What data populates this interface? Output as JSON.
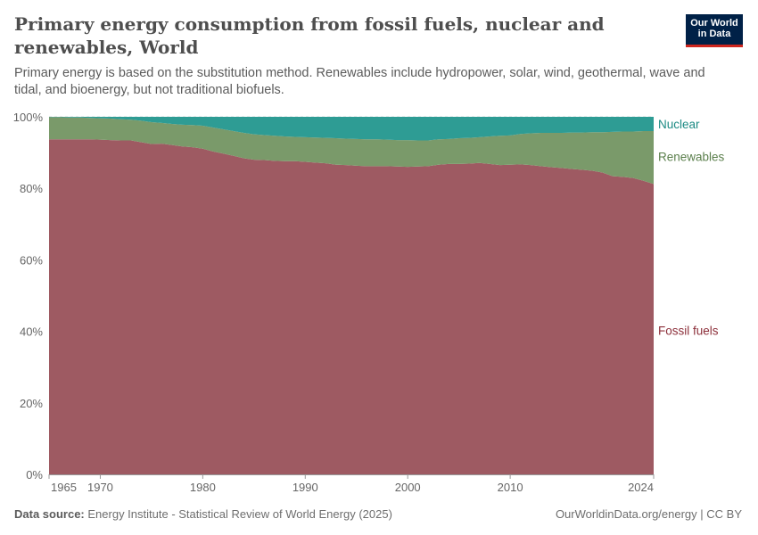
{
  "header": {
    "title": "Primary energy consumption from fossil fuels, nuclear and renewables, World",
    "subtitle": "Primary energy is based on the substitution method. Renewables include hydropower, solar, wind, geothermal, wave and tidal, and bioenergy, but not traditional biofuels.",
    "logo_line1": "Our World",
    "logo_line2": "in Data"
  },
  "footer": {
    "source_label": "Data source:",
    "source_text": "Energy Institute - Statistical Review of World Energy (2025)",
    "credit": "OurWorldinData.org/energy | CC BY"
  },
  "chart_data": {
    "type": "area",
    "stacked": true,
    "relative": true,
    "title": "Primary energy consumption from fossil fuels, nuclear and renewables, World",
    "xlabel": "",
    "ylabel": "",
    "xlim": [
      1965,
      2024
    ],
    "ylim": [
      0,
      100
    ],
    "x_ticks": [
      "1965",
      "1970",
      "1980",
      "1990",
      "2000",
      "2010",
      "2024"
    ],
    "x_tick_values": [
      1965,
      1970,
      1980,
      1990,
      2000,
      2010,
      2024
    ],
    "y_ticks": [
      "0%",
      "20%",
      "40%",
      "60%",
      "80%",
      "100%"
    ],
    "y_tick_values": [
      0,
      20,
      40,
      60,
      80,
      100
    ],
    "grid": "horizontal dashed",
    "legend": "right (inline labels)",
    "x": [
      1965,
      1966,
      1967,
      1968,
      1969,
      1970,
      1971,
      1972,
      1973,
      1974,
      1975,
      1976,
      1977,
      1978,
      1979,
      1980,
      1981,
      1982,
      1983,
      1984,
      1985,
      1986,
      1987,
      1988,
      1989,
      1990,
      1991,
      1992,
      1993,
      1994,
      1995,
      1996,
      1997,
      1998,
      1999,
      2000,
      2001,
      2002,
      2003,
      2004,
      2005,
      2006,
      2007,
      2008,
      2009,
      2010,
      2011,
      2012,
      2013,
      2014,
      2015,
      2016,
      2017,
      2018,
      2019,
      2020,
      2021,
      2022,
      2023,
      2024
    ],
    "series": [
      {
        "name": "Fossil fuels",
        "color": "#9e5a62",
        "label_color": "#8c2f3a",
        "values": [
          93.7,
          93.7,
          93.7,
          93.7,
          93.7,
          93.6,
          93.5,
          93.4,
          93.4,
          92.9,
          92.4,
          92.5,
          92.1,
          91.7,
          91.5,
          91.1,
          90.3,
          89.7,
          89.1,
          88.4,
          88.0,
          87.9,
          87.7,
          87.6,
          87.6,
          87.4,
          87.2,
          87.0,
          86.6,
          86.5,
          86.3,
          86.2,
          86.2,
          86.2,
          86.1,
          86.0,
          86.1,
          86.2,
          86.6,
          86.8,
          86.8,
          86.9,
          87.1,
          86.8,
          86.5,
          86.6,
          86.7,
          86.5,
          86.2,
          85.9,
          85.7,
          85.4,
          85.2,
          84.9,
          84.4,
          83.4,
          83.2,
          82.9,
          82.1,
          81.2
        ]
      },
      {
        "name": "Renewables",
        "color": "#7a9a6a",
        "label_color": "#5b7f4c",
        "values": [
          6.2,
          6.2,
          6.1,
          6.1,
          6.0,
          6.0,
          6.0,
          5.9,
          5.8,
          6.0,
          6.1,
          5.8,
          5.9,
          6.1,
          6.2,
          6.4,
          6.7,
          6.8,
          6.9,
          7.1,
          7.1,
          7.0,
          7.0,
          6.9,
          6.8,
          6.9,
          7.0,
          7.1,
          7.4,
          7.4,
          7.5,
          7.5,
          7.5,
          7.4,
          7.4,
          7.5,
          7.3,
          7.2,
          7.1,
          7.0,
          7.2,
          7.2,
          7.2,
          7.7,
          8.2,
          8.2,
          8.5,
          8.9,
          9.3,
          9.6,
          9.8,
          10.2,
          10.4,
          10.8,
          11.3,
          12.4,
          12.7,
          13.0,
          13.9,
          14.8
        ]
      },
      {
        "name": "Nuclear",
        "color": "#2e9c94",
        "label_color": "#1b8a83",
        "values": [
          0.1,
          0.1,
          0.2,
          0.2,
          0.3,
          0.4,
          0.5,
          0.7,
          0.8,
          1.1,
          1.5,
          1.7,
          2.0,
          2.2,
          2.3,
          2.5,
          3.0,
          3.5,
          4.0,
          4.5,
          4.9,
          5.1,
          5.3,
          5.5,
          5.6,
          5.7,
          5.8,
          5.9,
          6.0,
          6.1,
          6.2,
          6.3,
          6.3,
          6.4,
          6.5,
          6.5,
          6.6,
          6.6,
          6.3,
          6.2,
          6.0,
          5.9,
          5.7,
          5.5,
          5.3,
          5.2,
          4.8,
          4.6,
          4.5,
          4.5,
          4.5,
          4.4,
          4.4,
          4.3,
          4.3,
          4.2,
          4.1,
          4.1,
          4.0,
          4.0
        ]
      }
    ]
  }
}
